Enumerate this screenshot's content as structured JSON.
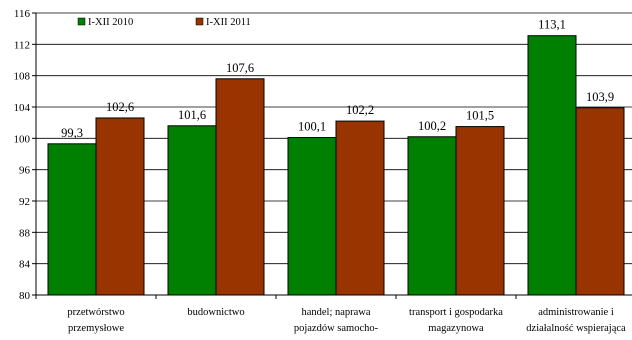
{
  "chart_data": {
    "type": "bar",
    "categories": [
      [
        "przetwórstwo",
        "przemysłowe"
      ],
      [
        "budownictwo"
      ],
      [
        "handel; naprawa",
        "pojazdów samocho-"
      ],
      [
        "transport i gospodarka",
        "magazynowa"
      ],
      [
        "administrowanie i",
        "działalność wspierająca"
      ]
    ],
    "series": [
      {
        "name": "I-XII 2010",
        "color": "#008000",
        "values": [
          99.3,
          101.6,
          100.1,
          100.2,
          113.1
        ],
        "labels": [
          "99,3",
          "101,6",
          "100,1",
          "100,2",
          "113,1"
        ]
      },
      {
        "name": "I-XII 2011",
        "color": "#993300",
        "values": [
          102.6,
          107.6,
          102.2,
          101.5,
          103.9
        ],
        "labels": [
          "102,6",
          "107,6",
          "102,2",
          "101,5",
          "103,9"
        ]
      }
    ],
    "ylim": [
      80,
      116
    ],
    "yticks": [
      80,
      84,
      88,
      92,
      96,
      100,
      104,
      108,
      112,
      116
    ],
    "grid": true,
    "legend": "top-left",
    "title": "",
    "xlabel": "",
    "ylabel": ""
  }
}
